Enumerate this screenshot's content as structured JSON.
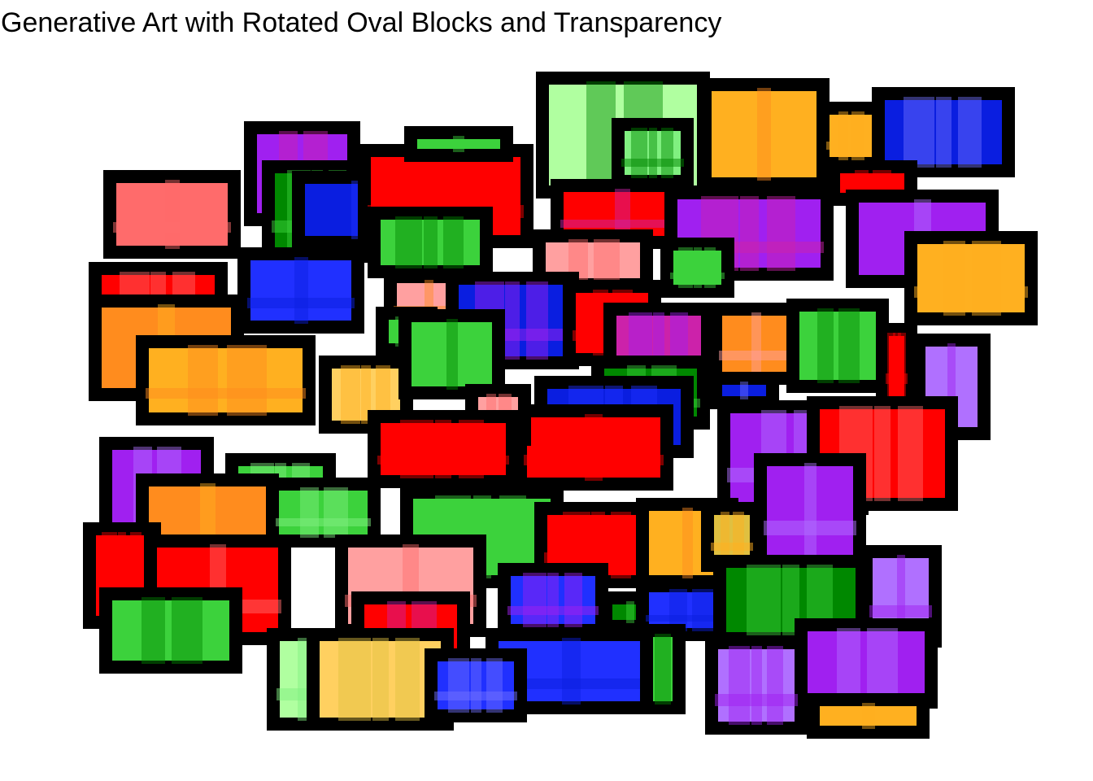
{
  "title": "Generative Art with Rotated Oval Blocks and Transparency",
  "colors": {
    "background": "#ffffff",
    "outline": "#000000",
    "palette": [
      "#ff6b6b",
      "#a020f0",
      "#0a1ee0",
      "#ff0000",
      "#3cd23c",
      "#ffb020",
      "#ff8c1e",
      "#00aa00",
      "#b0ffa0",
      "#80f080",
      "#ffa0a0",
      "#7070ff",
      "#cc22aa",
      "#b070ff",
      "#e0c040",
      "#ffd060",
      "#008800",
      "#2030ff"
    ]
  }
}
